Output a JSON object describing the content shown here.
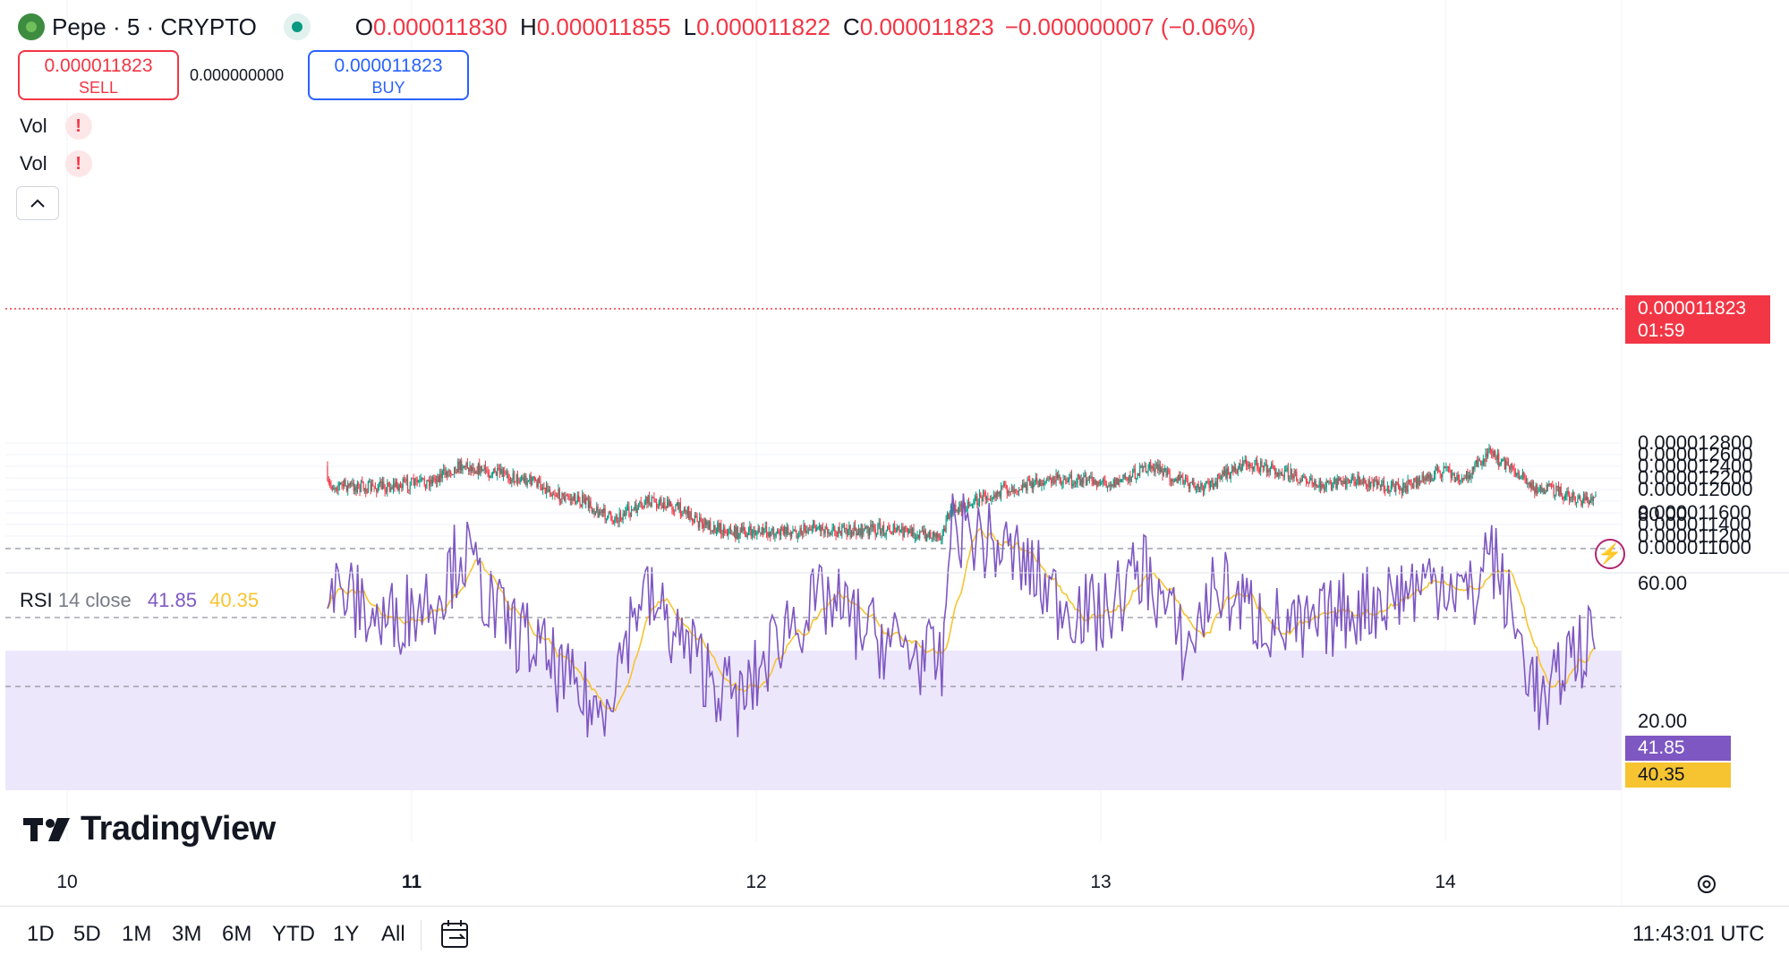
{
  "header": {
    "symbol": "Pepe · 5 · CRYPTO",
    "o_label": "O",
    "o_value": "0.000011830",
    "h_label": "H",
    "h_value": "0.000011855",
    "l_label": "L",
    "l_value": "0.000011822",
    "c_label": "C",
    "c_value": "0.000011823",
    "change": "−0.000000007 (−0.06%)"
  },
  "trade": {
    "sell_price": "0.000011823",
    "sell_label": "SELL",
    "spread": "0.000000000",
    "buy_price": "0.000011823",
    "buy_label": "BUY"
  },
  "indicators": {
    "vol1": "Vol",
    "vol2": "Vol",
    "warning": "!",
    "rsi_label": "RSI",
    "rsi_params": "14 close",
    "rsi_value": "41.85",
    "rsi_ma_value": "40.35"
  },
  "price_axis": [
    "0.000012800",
    "0.000012600",
    "0.000012400",
    "0.000012200",
    "0.000012000",
    "0.000011600",
    "0.000011400",
    "0.000011200",
    "0.000011000"
  ],
  "rsi_axis": [
    "80.00",
    "60.00",
    "20.00"
  ],
  "time_axis": [
    {
      "label": "10",
      "bold": false
    },
    {
      "label": "11",
      "bold": true
    },
    {
      "label": "12",
      "bold": false
    },
    {
      "label": "13",
      "bold": false
    },
    {
      "label": "14",
      "bold": false
    }
  ],
  "last_price_tag": {
    "price": "0.000011823",
    "countdown": "01:59"
  },
  "bottom": {
    "ranges": [
      "1D",
      "5D",
      "1M",
      "3M",
      "6M",
      "YTD",
      "1Y",
      "All"
    ],
    "clock": "11:43:01 UTC"
  },
  "branding": {
    "name": "TradingView"
  },
  "colors": {
    "up": "#089981",
    "down": "#f23645",
    "rsi": "#7e57c2",
    "rsi_ma": "#f7c431",
    "band": "#ede7fb"
  },
  "chart_data": [
    {
      "type": "candlestick",
      "title": "Pepe · 5 · CRYPTO",
      "ylim": [
        1.1e-05,
        1.28e-05
      ],
      "x_days": [
        "10",
        "11",
        "12",
        "13",
        "14"
      ],
      "close_path": [
        {
          "x": "09-23:00",
          "y": 1.24e-05
        },
        {
          "x": "10-03:00",
          "y": 1.244e-05
        },
        {
          "x": "10-05:00",
          "y": 1.222e-05
        },
        {
          "x": "10-07:30",
          "y": 1.185e-05
        },
        {
          "x": "10-08:30",
          "y": 1.2e-05
        },
        {
          "x": "10-11:00",
          "y": 1.195e-05
        },
        {
          "x": "10-14:00",
          "y": 1.186e-05
        },
        {
          "x": "10-15:30",
          "y": 1.198e-05
        },
        {
          "x": "10-19:00",
          "y": 1.208e-05
        },
        {
          "x": "10-21:00",
          "y": 1.203e-05
        },
        {
          "x": "11-01:00",
          "y": 1.212e-05
        },
        {
          "x": "11-03:30",
          "y": 1.243e-05
        },
        {
          "x": "11-06:00",
          "y": 1.226e-05
        },
        {
          "x": "11-08:30",
          "y": 1.215e-05
        },
        {
          "x": "11-10:30",
          "y": 1.187e-05
        },
        {
          "x": "11-12:00",
          "y": 1.18e-05
        },
        {
          "x": "11-13:00",
          "y": 1.162e-05
        },
        {
          "x": "11-14:00",
          "y": 1.15e-05
        },
        {
          "x": "11-16:00",
          "y": 1.17e-05
        },
        {
          "x": "11-16:30",
          "y": 1.182e-05
        },
        {
          "x": "11-19:00",
          "y": 1.165e-05
        },
        {
          "x": "11-20:00",
          "y": 1.143e-05
        },
        {
          "x": "11-22:30",
          "y": 1.126e-05
        },
        {
          "x": "12-03:00",
          "y": 1.128e-05
        },
        {
          "x": "12-04:00",
          "y": 1.137e-05
        },
        {
          "x": "12-06:00",
          "y": 1.128e-05
        },
        {
          "x": "12-09:00",
          "y": 1.132e-05
        },
        {
          "x": "12-12:00",
          "y": 1.122e-05
        },
        {
          "x": "12-13:00",
          "y": 1.125e-05
        },
        {
          "x": "12-13:30",
          "y": 1.162e-05
        },
        {
          "x": "12-14:30",
          "y": 1.172e-05
        },
        {
          "x": "12-16:00",
          "y": 1.19e-05
        },
        {
          "x": "12-18:00",
          "y": 1.205e-05
        },
        {
          "x": "12-21:00",
          "y": 1.218e-05
        },
        {
          "x": "13-01:00",
          "y": 1.212e-05
        },
        {
          "x": "13-03:30",
          "y": 1.24e-05
        },
        {
          "x": "13-07:00",
          "y": 1.2e-05
        },
        {
          "x": "13-10:00",
          "y": 1.245e-05
        },
        {
          "x": "13-13:00",
          "y": 1.23e-05
        },
        {
          "x": "13-15:00",
          "y": 1.205e-05
        },
        {
          "x": "13-18:00",
          "y": 1.215e-05
        },
        {
          "x": "13-21:00",
          "y": 1.202e-05
        },
        {
          "x": "14-00:00",
          "y": 1.235e-05
        },
        {
          "x": "14-01:00",
          "y": 1.212e-05
        },
        {
          "x": "14-03:00",
          "y": 1.262e-05
        },
        {
          "x": "14-05:00",
          "y": 1.23e-05
        },
        {
          "x": "14-06:00",
          "y": 1.205e-05
        },
        {
          "x": "14-08:00",
          "y": 1.195e-05
        },
        {
          "x": "14-09:30",
          "y": 1.182e-05
        },
        {
          "x": "14-10:30",
          "y": 1.185e-05
        }
      ]
    },
    {
      "type": "line",
      "title": "RSI 14 close",
      "ylim": [
        10,
        90
      ],
      "series": [
        {
          "name": "RSI",
          "last": 41.85
        },
        {
          "name": "RSI MA",
          "last": 40.35
        }
      ],
      "bands": [
        30,
        50,
        70
      ],
      "rsi_path": [
        {
          "x": "09-23:00",
          "y": 55
        },
        {
          "x": "10-03:00",
          "y": 62
        },
        {
          "x": "10-05:00",
          "y": 40
        },
        {
          "x": "10-07:30",
          "y": 28
        },
        {
          "x": "10-09:00",
          "y": 45
        },
        {
          "x": "10-12:00",
          "y": 50
        },
        {
          "x": "10-15:30",
          "y": 52
        },
        {
          "x": "10-19:00",
          "y": 58
        },
        {
          "x": "10-22:00",
          "y": 48
        },
        {
          "x": "11-02:00",
          "y": 58
        },
        {
          "x": "11-03:30",
          "y": 70
        },
        {
          "x": "11-06:00",
          "y": 50
        },
        {
          "x": "11-08:30",
          "y": 42
        },
        {
          "x": "11-11:00",
          "y": 30
        },
        {
          "x": "11-13:00",
          "y": 22
        },
        {
          "x": "11-14:30",
          "y": 38
        },
        {
          "x": "11-16:00",
          "y": 58
        },
        {
          "x": "11-19:00",
          "y": 42
        },
        {
          "x": "11-21:30",
          "y": 30
        },
        {
          "x": "11-23:00",
          "y": 25
        },
        {
          "x": "12-02:00",
          "y": 48
        },
        {
          "x": "12-05:00",
          "y": 55
        },
        {
          "x": "12-08:00",
          "y": 45
        },
        {
          "x": "12-11:00",
          "y": 40
        },
        {
          "x": "12-13:00",
          "y": 35
        },
        {
          "x": "12-13:30",
          "y": 78
        },
        {
          "x": "12-16:00",
          "y": 72
        },
        {
          "x": "12-18:00",
          "y": 68
        },
        {
          "x": "12-21:00",
          "y": 55
        },
        {
          "x": "13-00:00",
          "y": 50
        },
        {
          "x": "13-03:00",
          "y": 65
        },
        {
          "x": "13-06:00",
          "y": 40
        },
        {
          "x": "13-08:00",
          "y": 60
        },
        {
          "x": "13-11:00",
          "y": 50
        },
        {
          "x": "13-14:00",
          "y": 45
        },
        {
          "x": "13-17:00",
          "y": 52
        },
        {
          "x": "14-00:00",
          "y": 62
        },
        {
          "x": "14-02:00",
          "y": 55
        },
        {
          "x": "14-03:00",
          "y": 72
        },
        {
          "x": "14-05:00",
          "y": 45
        },
        {
          "x": "14-07:00",
          "y": 22
        },
        {
          "x": "14-08:30",
          "y": 40
        },
        {
          "x": "14-10:30",
          "y": 42
        }
      ]
    }
  ]
}
